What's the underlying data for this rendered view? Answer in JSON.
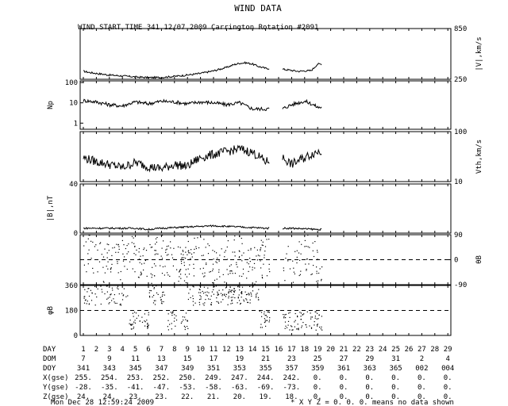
{
  "title": "WIND DATA",
  "subtitle": "WIND START TIME 341 12/07 2009 Carrington Rotation #2091",
  "footer": {
    "timestamp": "Mon Dec 28 12:59:24 2009",
    "note": "* X Y Z = 0. 0. 0. means no data shown"
  },
  "chart_data": [
    {
      "type": "line",
      "name": "speed",
      "ylabel_right": "|V|,km/s",
      "yticks_right": [
        "850",
        "250"
      ],
      "ylim": [
        250,
        850
      ],
      "x": [
        0,
        0.5,
        1,
        1.5,
        2,
        3,
        4,
        5,
        6,
        7,
        8,
        9,
        10,
        11,
        11.5,
        12,
        12.5,
        13,
        13.5,
        14,
        15.3,
        16,
        16.5,
        17,
        17.5,
        18
      ],
      "y": [
        345,
        330,
        320,
        310,
        300,
        290,
        278,
        270,
        272,
        285,
        300,
        320,
        350,
        390,
        420,
        440,
        445,
        430,
        400,
        380,
        370,
        355,
        345,
        350,
        352,
        430
      ]
    },
    {
      "type": "line",
      "name": "Np",
      "ylabel_left": "Np",
      "yticks_left": [
        "100",
        "10",
        "1"
      ],
      "yscale": "log",
      "ylim": [
        0.5,
        120
      ],
      "x": [
        0,
        1,
        2,
        3,
        4,
        5,
        6,
        7,
        8,
        9,
        10,
        11,
        12,
        12.5,
        13,
        14,
        15.3,
        16,
        17,
        18
      ],
      "y": [
        13,
        11,
        8,
        7,
        11,
        9,
        12,
        11,
        9,
        11,
        10,
        8,
        10,
        7,
        5,
        5,
        5,
        8,
        12,
        6
      ]
    },
    {
      "type": "line",
      "name": "Vth",
      "ylabel_right": "Vth,km/s",
      "yticks_right": [
        "100",
        "10"
      ],
      "yscale": "log",
      "ylim": [
        10,
        100
      ],
      "x": [
        0,
        1,
        2,
        3,
        4,
        5,
        6,
        7,
        8,
        9,
        10,
        11,
        12,
        13,
        14,
        15.3,
        16,
        17,
        18
      ],
      "y": [
        30,
        25,
        22,
        19,
        24,
        20,
        18,
        22,
        20,
        30,
        35,
        40,
        45,
        38,
        25,
        30,
        22,
        30,
        40
      ]
    },
    {
      "type": "line",
      "name": "B",
      "ylabel_left": "|B|,nT",
      "yticks_left": [
        "40",
        "0"
      ],
      "ylim": [
        0,
        40
      ],
      "x": [
        0,
        2,
        4,
        5,
        6,
        8,
        10,
        12,
        14,
        15.3,
        16,
        18
      ],
      "y": [
        4,
        4,
        4,
        3,
        4,
        5,
        6,
        5,
        4,
        4,
        4,
        3
      ]
    },
    {
      "type": "scatter",
      "name": "thetaB",
      "ylabel_right": "θB",
      "yticks_right": [
        "90",
        "0",
        "-90"
      ],
      "ylim": [
        -90,
        90
      ],
      "reference_line": 0
    },
    {
      "type": "scatter",
      "name": "phiB",
      "ylabel_left": "φB",
      "yticks_left": [
        "360",
        "180",
        "0"
      ],
      "ylim": [
        0,
        360
      ],
      "reference_line": 180
    }
  ],
  "axis_table": {
    "rows": [
      {
        "label": "DAY",
        "values": [
          "1",
          "2",
          "3",
          "4",
          "5",
          "6",
          "7",
          "8",
          "9",
          "10",
          "11",
          "12",
          "13",
          "14",
          "15",
          "16",
          "17",
          "18",
          "19",
          "20",
          "21",
          "22",
          "23",
          "24",
          "25",
          "26",
          "27",
          "28",
          "29"
        ]
      },
      {
        "label": "DOM",
        "values": [
          "7",
          "9",
          "11",
          "13",
          "15",
          "17",
          "19",
          "21",
          "23",
          "25",
          "27",
          "29",
          "31",
          "2",
          "4"
        ]
      },
      {
        "label": "DOY",
        "values": [
          "341",
          "343",
          "345",
          "347",
          "349",
          "351",
          "353",
          "355",
          "357",
          "359",
          "361",
          "363",
          "365",
          "002",
          "004"
        ]
      },
      {
        "label": "X(gse)",
        "values": [
          "255.",
          "254.",
          "253.",
          "252.",
          "250.",
          "249.",
          "247.",
          "244.",
          "242.",
          "0.",
          "0.",
          "0.",
          "0.",
          "0.",
          "0."
        ]
      },
      {
        "label": "Y(gse)",
        "values": [
          "-28.",
          "-35.",
          "-41.",
          "-47.",
          "-53.",
          "-58.",
          "-63.",
          "-69.",
          "-73.",
          "0.",
          "0.",
          "0.",
          "0.",
          "0.",
          "0."
        ]
      },
      {
        "label": "Z(gse)",
        "values": [
          "24.",
          "24.",
          "23.",
          "23.",
          "22.",
          "21.",
          "20.",
          "19.",
          "18.",
          "0.",
          "0.",
          "0.",
          "0.",
          "0.",
          "0."
        ]
      }
    ]
  }
}
